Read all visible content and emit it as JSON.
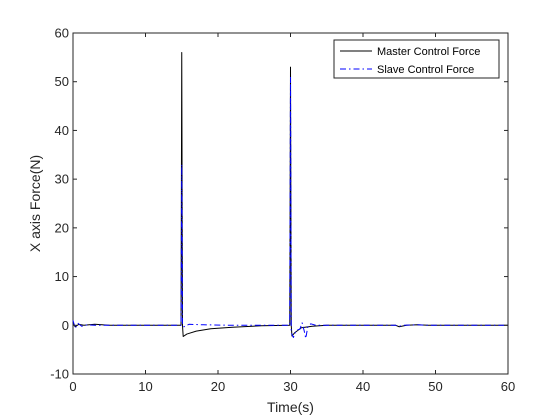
{
  "chart_data": {
    "type": "line",
    "title": "",
    "xlabel": "Time(s)",
    "ylabel": "X axis Force(N)",
    "xlim": [
      0,
      60
    ],
    "ylim": [
      -10,
      60
    ],
    "xticks": [
      "0",
      "10",
      "20",
      "30",
      "40",
      "50",
      "60"
    ],
    "yticks": [
      "-10",
      "0",
      "10",
      "20",
      "30",
      "40",
      "50",
      "60"
    ],
    "grid": false,
    "legend_position": "top-right",
    "series": [
      {
        "name": "Master Control Force",
        "color": "#000000",
        "style": "solid",
        "points": [
          [
            0,
            0.6
          ],
          [
            0.3,
            -0.3
          ],
          [
            0.8,
            0.2
          ],
          [
            1.5,
            0
          ],
          [
            3,
            0.2
          ],
          [
            5,
            0
          ],
          [
            14.9,
            0
          ],
          [
            15.0,
            56
          ],
          [
            15.1,
            0
          ],
          [
            15.2,
            -2.3
          ],
          [
            15.7,
            -1.8
          ],
          [
            17,
            -1.2
          ],
          [
            19,
            -0.7
          ],
          [
            22,
            -0.4
          ],
          [
            26,
            -0.1
          ],
          [
            29.9,
            0
          ],
          [
            30.0,
            53
          ],
          [
            30.1,
            0
          ],
          [
            30.2,
            -2.2
          ],
          [
            30.6,
            -1.5
          ],
          [
            31.5,
            -0.5
          ],
          [
            33,
            -0.2
          ],
          [
            35,
            0
          ],
          [
            44.5,
            0
          ],
          [
            45,
            -0.3
          ],
          [
            46,
            0
          ],
          [
            47.5,
            0.1
          ],
          [
            49,
            0
          ],
          [
            60,
            0
          ]
        ]
      },
      {
        "name": "Slave Control Force",
        "color": "#0000ff",
        "style": "dash-dot",
        "points": [
          [
            0,
            1.0
          ],
          [
            0.3,
            -0.6
          ],
          [
            0.7,
            0.4
          ],
          [
            1.2,
            -0.2
          ],
          [
            2,
            0.1
          ],
          [
            3,
            0
          ],
          [
            14.9,
            0
          ],
          [
            15.0,
            33
          ],
          [
            15.1,
            0
          ],
          [
            15.3,
            -0.3
          ],
          [
            16,
            0.2
          ],
          [
            18,
            0.1
          ],
          [
            22,
            0
          ],
          [
            29.9,
            0
          ],
          [
            30.0,
            51
          ],
          [
            30.1,
            -1.5
          ],
          [
            30.4,
            -2.5
          ],
          [
            30.8,
            -1.0
          ],
          [
            31.3,
            -0.8
          ],
          [
            31.6,
            0.5
          ],
          [
            31.9,
            -1.2
          ],
          [
            32.1,
            -2.7
          ],
          [
            32.4,
            -0.2
          ],
          [
            32.8,
            0.3
          ],
          [
            33.5,
            0
          ],
          [
            44.5,
            0
          ],
          [
            45,
            -0.2
          ],
          [
            45.5,
            0
          ],
          [
            47.5,
            0.1
          ],
          [
            49,
            0
          ],
          [
            60,
            0
          ]
        ]
      }
    ]
  }
}
